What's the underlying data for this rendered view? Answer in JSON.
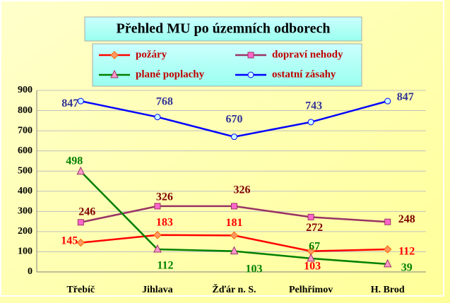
{
  "chart_data": {
    "type": "line",
    "title": "Přehled MU po územních odborech",
    "categories": [
      "Třebíč",
      "Jihlava",
      "Žďár n. S.",
      "Pelhřimov",
      "H. Brod"
    ],
    "series": [
      {
        "name": "požáry",
        "color": "#ff0000",
        "marker": "diamond",
        "marker_color": "#ff9966",
        "label_color": "#ff0000",
        "values": [
          145,
          183,
          181,
          103,
          112
        ]
      },
      {
        "name": "dopraví nehody",
        "color": "#993366",
        "marker": "square",
        "marker_color": "#ff66cc",
        "label_color": "#800000",
        "values": [
          246,
          326,
          326,
          272,
          248
        ]
      },
      {
        "name": "plané poplachy",
        "color": "#008000",
        "marker": "triangle",
        "marker_color": "#ff99cc",
        "label_color": "#008000",
        "values": [
          498,
          112,
          103,
          67,
          39
        ]
      },
      {
        "name": "ostatní zásahy",
        "color": "#0000ff",
        "marker": "circle",
        "marker_color": "#ccffff",
        "label_color": "#333399",
        "values": [
          847,
          768,
          670,
          743,
          847
        ]
      }
    ],
    "ylim": [
      0,
      900
    ],
    "yticks": [
      0,
      100,
      200,
      300,
      400,
      500,
      600,
      700,
      800,
      900
    ],
    "grid": true
  }
}
